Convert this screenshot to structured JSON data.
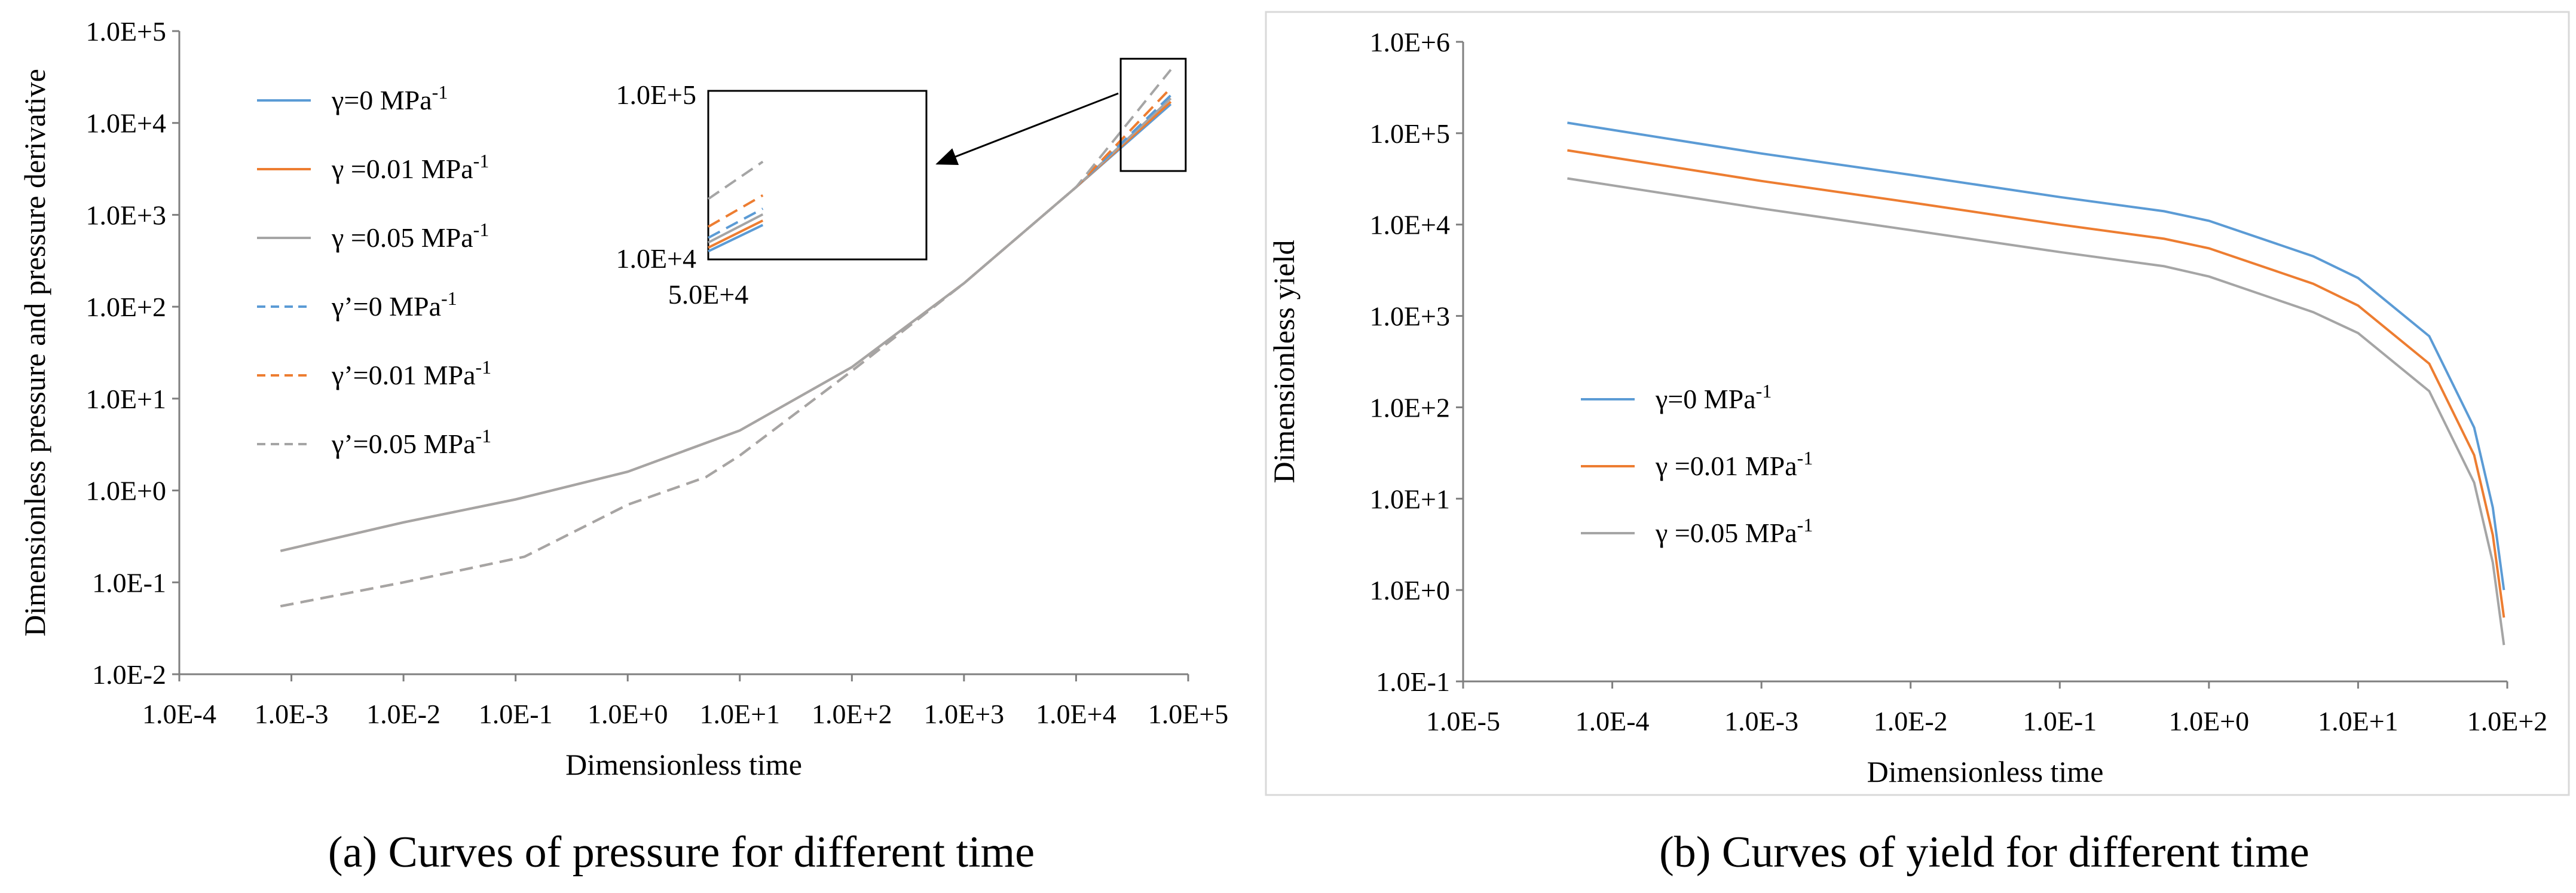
{
  "chart_data": [
    {
      "type": "line",
      "caption": "(a) Curves of  pressure for different  time",
      "xlabel": "Dimensionless time",
      "ylabel": "Dimensionless pressure and pressure derivative",
      "x_scale": "log",
      "y_scale": "log",
      "xlim": [
        0.0001,
        100000
      ],
      "ylim": [
        0.01,
        100000
      ],
      "x_ticks": [
        0.0001,
        0.001,
        0.01,
        0.1,
        1,
        10,
        100,
        1000,
        10000,
        100000
      ],
      "x_tick_labels": [
        "1.0E-4",
        "1.0E-3",
        "1.0E-2",
        "1.0E-1",
        "1.0E+0",
        "1.0E+1",
        "1.0E+2",
        "1.0E+3",
        "1.0E+4",
        "1.0E+5"
      ],
      "y_ticks": [
        0.01,
        0.1,
        1,
        10,
        100,
        1000,
        10000,
        100000
      ],
      "y_tick_labels": [
        "1.0E-2",
        "1.0E-1",
        "1.0E+0",
        "1.0E+1",
        "1.0E+2",
        "1.0E+3",
        "1.0E+4",
        "1.0E+5"
      ],
      "grid": false,
      "legend_position": "top-left",
      "series": [
        {
          "name": "γ=0 MPa-1",
          "color": "#5b9bd5",
          "dash": "solid",
          "x": [
            0.0008,
            0.01,
            0.1,
            1,
            10,
            100,
            1000,
            10000,
            70000
          ],
          "y": [
            0.22,
            0.45,
            0.8,
            1.6,
            4.5,
            22,
            180,
            2000,
            16000
          ]
        },
        {
          "name": "γ =0.01 MPa-1",
          "color": "#ed7d31",
          "dash": "solid",
          "x": [
            0.0008,
            0.01,
            0.1,
            1,
            10,
            100,
            1000,
            10000,
            70000
          ],
          "y": [
            0.22,
            0.45,
            0.8,
            1.6,
            4.5,
            22,
            180,
            2000,
            17000
          ]
        },
        {
          "name": "γ =0.05 MPa-1",
          "color": "#a5a5a5",
          "dash": "solid",
          "x": [
            0.0008,
            0.01,
            0.1,
            1,
            10,
            100,
            1000,
            10000,
            70000
          ],
          "y": [
            0.22,
            0.45,
            0.8,
            1.6,
            4.5,
            22,
            180,
            2000,
            18500
          ]
        },
        {
          "name": "γ’=0 MPa-1",
          "color": "#5b9bd5",
          "dash": "dashed",
          "x": [
            0.0008,
            0.01,
            0.12,
            1,
            5,
            10,
            100,
            1000,
            10000,
            70000
          ],
          "y": [
            0.055,
            0.1,
            0.19,
            0.7,
            1.4,
            2.4,
            20,
            180,
            2000,
            20000
          ]
        },
        {
          "name": "γ’=0.01 MPa-1",
          "color": "#ed7d31",
          "dash": "dashed",
          "x": [
            0.0008,
            0.01,
            0.12,
            1,
            5,
            10,
            100,
            1000,
            10000,
            70000
          ],
          "y": [
            0.055,
            0.1,
            0.19,
            0.7,
            1.4,
            2.4,
            20,
            180,
            2000,
            24000
          ]
        },
        {
          "name": "γ’=0.05 MPa-1",
          "color": "#a5a5a5",
          "dash": "dashed",
          "x": [
            0.0008,
            0.01,
            0.12,
            1,
            5,
            10,
            100,
            1000,
            10000,
            70000
          ],
          "y": [
            0.055,
            0.1,
            0.19,
            0.7,
            1.4,
            2.4,
            20,
            180,
            2000,
            38000
          ]
        }
      ],
      "inset": {
        "y_top_label": "1.0E+5",
        "y_bottom_label": "1.0E+4",
        "x_left_label": "5.0E+4"
      }
    },
    {
      "type": "line",
      "caption": "(b) Curves of   yield  for different  time",
      "xlabel": "Dimensionless time",
      "ylabel": "Dimensionless yield",
      "x_scale": "log",
      "y_scale": "log",
      "xlim": [
        1e-05,
        100
      ],
      "ylim": [
        0.1,
        1000000
      ],
      "x_ticks": [
        1e-05,
        0.0001,
        0.001,
        0.01,
        0.1,
        1,
        10,
        100
      ],
      "x_tick_labels": [
        "1.0E-5",
        "1.0E-4",
        "1.0E-3",
        "1.0E-2",
        "1.0E-1",
        "1.0E+0",
        "1.0E+1",
        "1.0E+2"
      ],
      "y_ticks": [
        0.1,
        1,
        10,
        100,
        1000,
        10000,
        100000,
        1000000
      ],
      "y_tick_labels": [
        "1.0E-1",
        "1.0E+0",
        "1.0E+1",
        "1.0E+2",
        "1.0E+3",
        "1.0E+4",
        "1.0E+5",
        "1.0E+6"
      ],
      "grid": false,
      "legend_position": "middle-left",
      "series": [
        {
          "name": "γ=0 MPa-1",
          "color": "#5b9bd5",
          "dash": "solid",
          "x": [
            5e-05,
            0.001,
            0.01,
            0.1,
            0.5,
            1,
            5,
            10,
            30,
            60,
            80,
            95
          ],
          "y": [
            130000,
            60000,
            35000,
            20000,
            14000,
            11000,
            4500,
            2600,
            600,
            60,
            8,
            1
          ]
        },
        {
          "name": "γ =0.01 MPa-1",
          "color": "#ed7d31",
          "dash": "solid",
          "x": [
            5e-05,
            0.001,
            0.01,
            0.1,
            0.5,
            1,
            5,
            10,
            30,
            60,
            80,
            95
          ],
          "y": [
            65000,
            30000,
            17500,
            10000,
            7000,
            5500,
            2250,
            1300,
            300,
            30,
            4,
            0.5
          ]
        },
        {
          "name": "γ =0.05 MPa-1",
          "color": "#a5a5a5",
          "dash": "solid",
          "x": [
            5e-05,
            0.001,
            0.01,
            0.1,
            0.5,
            1,
            5,
            10,
            30,
            60,
            80,
            95
          ],
          "y": [
            32000,
            15000,
            8700,
            5000,
            3500,
            2700,
            1100,
            650,
            150,
            15,
            2,
            0.25
          ]
        }
      ]
    }
  ]
}
